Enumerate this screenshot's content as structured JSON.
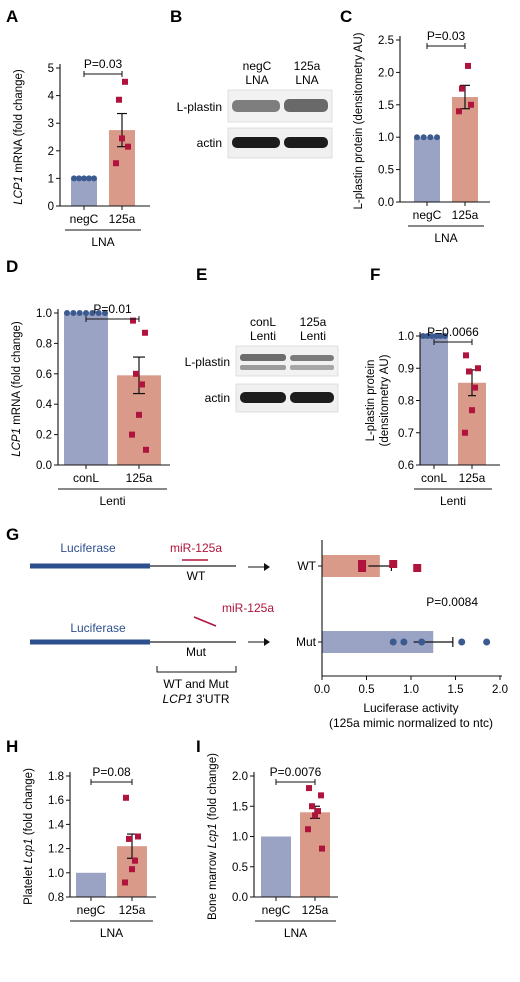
{
  "colors": {
    "neg_bar": "#9ba3c4",
    "exp_bar": "#d99a8a",
    "neg_dot": "#3b5a8f",
    "exp_dot": "#b0143c",
    "luc_line": "#2d4f8e"
  },
  "chart_data": [
    {
      "panel": "A",
      "type": "bar",
      "categories": [
        "negC",
        "125a"
      ],
      "values": [
        1.0,
        2.75
      ],
      "errors": [
        0,
        0.6
      ],
      "group_label": "LNA",
      "points": [
        [
          1,
          1,
          1,
          1,
          1
        ],
        [
          1.55,
          2.15,
          3.85,
          4.5,
          2.45
        ]
      ],
      "ylabel_italic": "LCP1",
      "ylabel_rest": " mRNA (fold change)",
      "ylim": [
        0,
        5
      ],
      "yticks": [
        "0",
        "1",
        "2",
        "3",
        "4",
        "5"
      ],
      "pvalue": "P=0.03"
    },
    {
      "panel": "C",
      "type": "bar",
      "categories": [
        "negC",
        "125a"
      ],
      "values": [
        1.0,
        1.62
      ],
      "errors": [
        0,
        0.18
      ],
      "group_label": "LNA",
      "points": [
        [
          1,
          1,
          1,
          1
        ],
        [
          1.4,
          1.5,
          1.75,
          2.1
        ]
      ],
      "ylabel_italic": "",
      "ylabel_rest": "L-plastin protein (densitometry AU)",
      "ylim": [
        0,
        2.5
      ],
      "yticks": [
        "0.0",
        "0.5",
        "1.0",
        "1.5",
        "2.0",
        "2.5"
      ],
      "pvalue": "P=0.03"
    },
    {
      "panel": "D",
      "type": "bar",
      "categories": [
        "conL",
        "125a"
      ],
      "values": [
        1.0,
        0.59
      ],
      "errors": [
        0,
        0.12
      ],
      "group_label": "Lenti",
      "points": [
        [
          1,
          1,
          1,
          1,
          1,
          1,
          1
        ],
        [
          0.95,
          0.87,
          0.6,
          0.53,
          0.33,
          0.2,
          0.1
        ]
      ],
      "ylabel_italic": "LCP1",
      "ylabel_rest": " mRNA (fold change)",
      "ylim": [
        0,
        1.0
      ],
      "yticks": [
        "0.0",
        "0.2",
        "0.4",
        "0.6",
        "0.8",
        "1.0"
      ],
      "pvalue": "P=0.01"
    },
    {
      "panel": "F",
      "type": "bar",
      "categories": [
        "conL",
        "125a"
      ],
      "values": [
        1.0,
        0.855
      ],
      "errors": [
        0,
        0.04
      ],
      "group_label": "Lenti",
      "points": [
        [
          1,
          1,
          1,
          1,
          1,
          1
        ],
        [
          0.94,
          0.9,
          0.89,
          0.84,
          0.77,
          0.7
        ]
      ],
      "ylabel_italic": "",
      "ylabel_rest": "L-plastin protein",
      "ylabel_line2": "(densitometry AU)",
      "ylim": [
        0.6,
        1.0
      ],
      "yticks": [
        "0.6",
        "0.7",
        "0.8",
        "0.9",
        "1.0"
      ],
      "pvalue": "P=0.0066"
    },
    {
      "panel": "G",
      "type": "bar",
      "orientation": "horizontal",
      "categories": [
        "WT",
        "Mut"
      ],
      "values": [
        0.65,
        1.25
      ],
      "errors": [
        0.13,
        0.22
      ],
      "points": [
        [
          0.45,
          0.45,
          0.8,
          1.07
        ],
        [
          0.8,
          0.92,
          1.12,
          1.57,
          1.85
        ]
      ],
      "xlim": [
        0,
        2.0
      ],
      "xticks": [
        "0.0",
        "0.5",
        "1.0",
        "1.5",
        "2.0"
      ],
      "xlabel": "Luciferase activity",
      "xlabel_line2": "(125a mimic normalized to ntc)",
      "pvalue": "P=0.0084"
    },
    {
      "panel": "H",
      "type": "bar",
      "categories": [
        "negC",
        "125a"
      ],
      "values": [
        1.0,
        1.22
      ],
      "errors": [
        0,
        0.1
      ],
      "group_label": "LNA",
      "points": [
        [],
        [
          1.62,
          1.3,
          1.28,
          1.1,
          1.03,
          0.92
        ]
      ],
      "ylabel_italic": "Lcp1",
      "ylabel_pre": "Platelet ",
      "ylabel_rest": " (fold change)",
      "ylim": [
        0.8,
        1.8
      ],
      "yticks": [
        "0.8",
        "1.0",
        "1.2",
        "1.4",
        "1.6",
        "1.8"
      ],
      "pvalue": "P=0.08"
    },
    {
      "panel": "I",
      "type": "bar",
      "categories": [
        "negC",
        "125a"
      ],
      "values": [
        1.0,
        1.4
      ],
      "errors": [
        0,
        0.1
      ],
      "group_label": "LNA",
      "points": [
        [],
        [
          1.8,
          1.68,
          1.5,
          1.42,
          1.35,
          1.12,
          0.8
        ]
      ],
      "ylabel_italic": "Lcp1",
      "ylabel_pre": "Bone marrow ",
      "ylabel_rest": " (fold change)",
      "ylim": [
        0,
        2.0
      ],
      "yticks": [
        "0.0",
        "0.5",
        "1.0",
        "1.5",
        "2.0"
      ],
      "pvalue": "P=0.0076"
    }
  ],
  "blots": [
    {
      "panel": "B",
      "headers": [
        [
          "negC",
          "LNA"
        ],
        [
          "125a",
          "LNA"
        ]
      ],
      "rows": [
        "L-plastin",
        "actin"
      ]
    },
    {
      "panel": "E",
      "headers": [
        [
          "conL",
          "Lenti"
        ],
        [
          "125a",
          "Lenti"
        ]
      ],
      "rows": [
        "L-plastin",
        "actin"
      ]
    }
  ],
  "diagram": {
    "wt": {
      "luc": "Luciferase",
      "mir": "miR-125a",
      "label": "WT"
    },
    "mut": {
      "luc": "Luciferase",
      "mir": "miR-125a",
      "label": "Mut"
    },
    "bracket_line1": "WT and Mut",
    "bracket_italic": "LCP1",
    "bracket_rest": " 3'UTR"
  }
}
